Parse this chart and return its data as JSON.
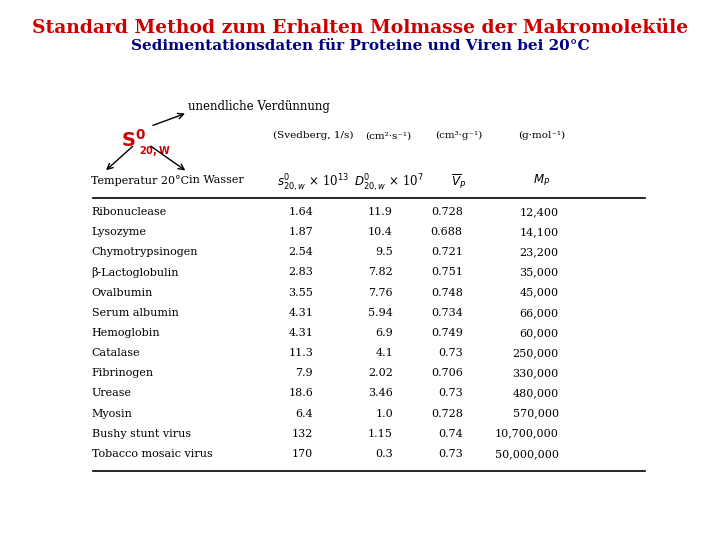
{
  "title": "Standard Method zum Erhalten Molmasse der Makromoleküle",
  "subtitle": "Sedimentationsdaten für Proteine und Viren bei 20°C",
  "title_color": "#CC0000",
  "subtitle_color": "#000080",
  "col_units": [
    "(Svedberg, 1/s)",
    "(cm²·s⁻¹)",
    "(cm³·g⁻¹)",
    "(g·mol⁻¹)"
  ],
  "row_data": [
    [
      "Ribonuclease",
      "1.64",
      "11.9",
      "0.728",
      "12,400"
    ],
    [
      "Lysozyme",
      "1.87",
      "10.4",
      "0.688",
      "14,100"
    ],
    [
      "Chymotrypsinogen",
      "2.54",
      "9.5",
      "0.721",
      "23,200"
    ],
    [
      "β-Lactoglobulin",
      "2.83",
      "7.82",
      "0.751",
      "35,000"
    ],
    [
      "Ovalbumin",
      "3.55",
      "7.76",
      "0.748",
      "45,000"
    ],
    [
      "Serum albumin",
      "4.31",
      "5.94",
      "0.734",
      "66,000"
    ],
    [
      "Hemoglobin",
      "4.31",
      "6.9",
      "0.749",
      "60,000"
    ],
    [
      "Catalase",
      "11.3",
      "4.1",
      "0.73",
      "250,000"
    ],
    [
      "Fibrinogen",
      "7.9",
      "2.02",
      "0.706",
      "330,000"
    ],
    [
      "Urease",
      "18.6",
      "3.46",
      "0.73",
      "480,000"
    ],
    [
      "Myosin",
      "6.4",
      "1.0",
      "0.728",
      "570,000"
    ],
    [
      "Bushy stunt virus",
      "132",
      "1.15",
      "0.74",
      "10,700,000"
    ],
    [
      "Tobacco mosaic virus",
      "170",
      "0.3",
      "0.73",
      "50,000,000"
    ]
  ],
  "label_temp": "Temperatur 20°C",
  "label_water": "in Wasser",
  "unendliche": "unendliche Verdünnung",
  "background": "#FFFFFF"
}
